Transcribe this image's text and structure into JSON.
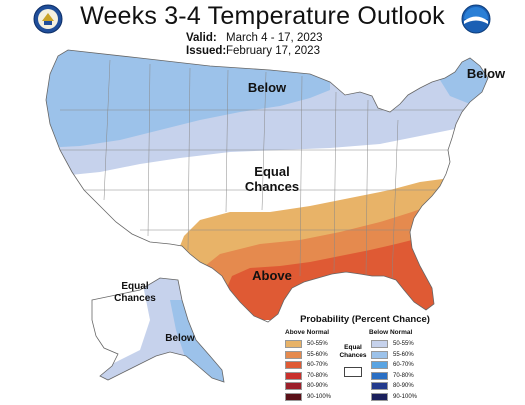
{
  "header": {
    "title": "Weeks 3-4 Temperature Outlook",
    "valid_label": "Valid:",
    "valid_value": "March 4 - 17, 2023",
    "issued_label": "Issued:",
    "issued_value": "February 17, 2023"
  },
  "logos": {
    "left": "doc-seal-icon",
    "right": "noaa-logo-icon"
  },
  "map_labels": {
    "below_north": "Below",
    "below_northeast": "Below",
    "equal_chances_main_1": "Equal",
    "equal_chances_main_2": "Chances",
    "above_south": "Above",
    "equal_chances_alaska_1": "Equal",
    "equal_chances_alaska_2": "Chances",
    "below_alaska": "Below"
  },
  "legend": {
    "title": "Probability (Percent Chance)",
    "above_header": "Above Normal",
    "below_header": "Below Normal",
    "equal_label_1": "Equal",
    "equal_label_2": "Chances",
    "above": [
      {
        "label": "50-55%",
        "color": "#e8b368"
      },
      {
        "label": "55-60%",
        "color": "#e58a4e"
      },
      {
        "label": "60-70%",
        "color": "#df5a34"
      },
      {
        "label": "70-80%",
        "color": "#c9302c"
      },
      {
        "label": "80-90%",
        "color": "#9c1f2a"
      },
      {
        "label": "90-100%",
        "color": "#5a1018"
      }
    ],
    "below": [
      {
        "label": "50-55%",
        "color": "#c6d2ec"
      },
      {
        "label": "55-60%",
        "color": "#9cc2ea"
      },
      {
        "label": "60-70%",
        "color": "#5aa4e2"
      },
      {
        "label": "70-80%",
        "color": "#2a6fc4"
      },
      {
        "label": "80-90%",
        "color": "#233a8c"
      },
      {
        "label": "90-100%",
        "color": "#1a1f5c"
      }
    ]
  },
  "colors": {
    "below_50_55": "#c6d2ec",
    "below_55_60": "#9cc2ea",
    "above_50_55": "#e8b368",
    "above_55_60": "#e58a4e",
    "above_60_70": "#df5a34"
  }
}
